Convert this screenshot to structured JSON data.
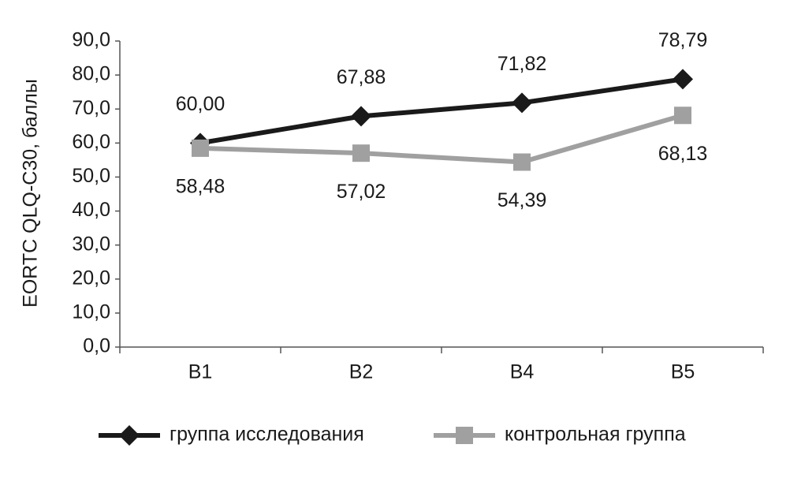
{
  "chart_data": {
    "type": "line",
    "y_label": "EORTC QLQ-C30, баллы",
    "categories": [
      "B1",
      "B2",
      "B4",
      "B5"
    ],
    "series": [
      {
        "name": "группа исследования",
        "color": "#1a1a1a",
        "marker": "diamond",
        "values": [
          60.0,
          67.88,
          71.82,
          78.79
        ],
        "value_labels": [
          "60,00",
          "67,88",
          "71,82",
          "78,79"
        ]
      },
      {
        "name": "контрольная группа",
        "color": "#a0a0a0",
        "marker": "square",
        "values": [
          58.48,
          57.02,
          54.39,
          68.13
        ],
        "value_labels": [
          "58,48",
          "57,02",
          "54,39",
          "68,13"
        ]
      }
    ],
    "ylim": [
      0,
      90
    ],
    "yticks": [
      {
        "value": 0,
        "label": "0,0"
      },
      {
        "value": 10,
        "label": "10,0"
      },
      {
        "value": 20,
        "label": "20,0"
      },
      {
        "value": 30,
        "label": "30,0"
      },
      {
        "value": 40,
        "label": "40,0"
      },
      {
        "value": 50,
        "label": "50,0"
      },
      {
        "value": 60,
        "label": "60,0"
      },
      {
        "value": 70,
        "label": "70,0"
      },
      {
        "value": 80,
        "label": "80,0"
      },
      {
        "value": 90,
        "label": "90,0"
      }
    ],
    "grid": false,
    "legend": "bottom"
  }
}
